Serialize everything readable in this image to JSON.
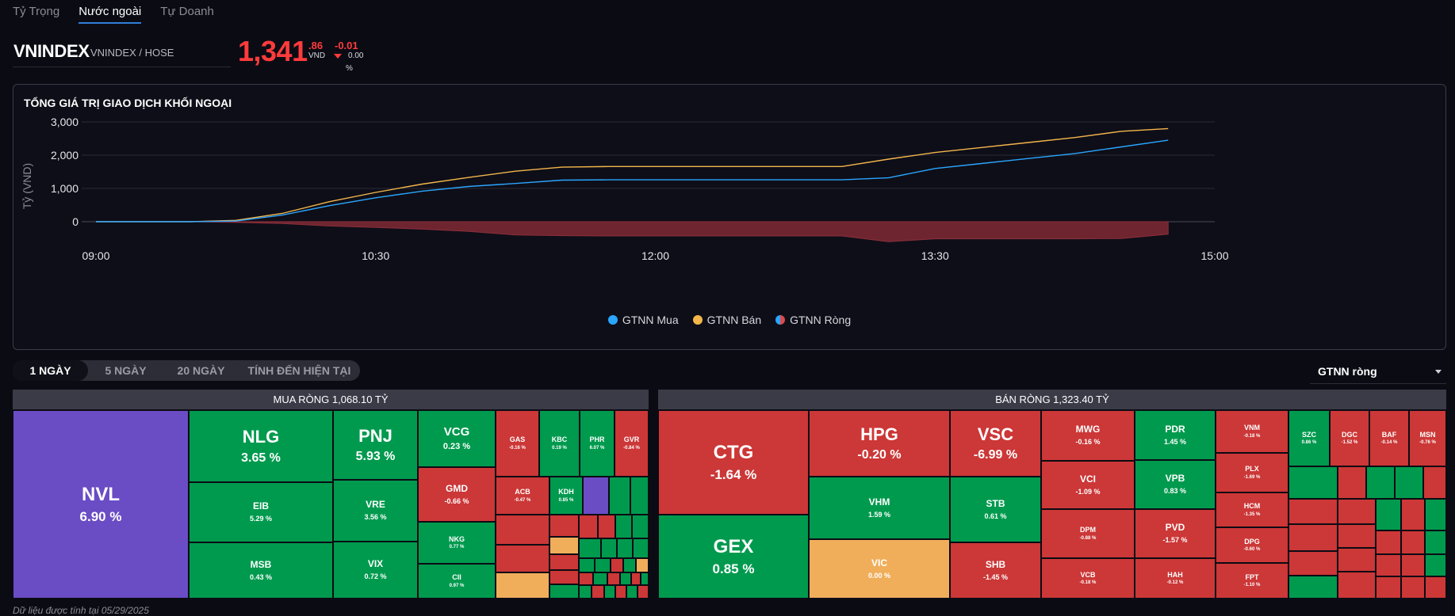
{
  "tabs": [
    {
      "label": "Tỷ Trọng"
    },
    {
      "label": "Nước ngoài"
    },
    {
      "label": "Tự Doanh"
    }
  ],
  "index": {
    "title": "VNINDEX",
    "subtitle": "VNINDEX / HOSE",
    "price_int": "1,341",
    "price_dec": ".86",
    "unit": "VND",
    "change": "-0.01",
    "change_pct": "0.00",
    "pct_sign": "%"
  },
  "chart_data": {
    "type": "line",
    "title": "TỔNG GIÁ TRỊ GIAO DỊCH KHỐI NGOẠI",
    "ylabel": "Tỷ (VND)",
    "xlabel": "",
    "ylim": [
      -500,
      3000
    ],
    "yticks": [
      "3,000",
      "2,000",
      "1,000",
      "0"
    ],
    "xticks": [
      "09:00",
      "10:30",
      "12:00",
      "13:30",
      "15:00"
    ],
    "x_hours": [
      9.0,
      9.25,
      9.5,
      9.75,
      10.0,
      10.25,
      10.5,
      10.75,
      11.0,
      11.25,
      11.5,
      11.75,
      12.0,
      12.5,
      13.0,
      13.25,
      13.5,
      13.75,
      14.0,
      14.25,
      14.5,
      14.75
    ],
    "series": [
      {
        "name": "GTNN Mua",
        "color": "#2aa6ff",
        "values": [
          0,
          0,
          0,
          20,
          200,
          480,
          720,
          920,
          1060,
          1150,
          1250,
          1260,
          1260,
          1260,
          1260,
          1320,
          1600,
          1750,
          1900,
          2050,
          2250,
          2450
        ]
      },
      {
        "name": "GTNN Bán",
        "color": "#f3b64b",
        "values": [
          0,
          0,
          0,
          40,
          250,
          600,
          880,
          1130,
          1330,
          1520,
          1640,
          1660,
          1660,
          1660,
          1660,
          1880,
          2080,
          2230,
          2380,
          2530,
          2720,
          2800
        ]
      },
      {
        "name": "GTNN Ròng",
        "color": "#d94c4c",
        "values": [
          0,
          0,
          0,
          -20,
          -50,
          -120,
          -160,
          -210,
          -270,
          -370,
          -390,
          -400,
          -400,
          -400,
          -400,
          -560,
          -480,
          -480,
          -480,
          -480,
          -470,
          -350
        ]
      }
    ],
    "legend": [
      "GTNN Mua",
      "GTNN Bán",
      "GTNN Ròng"
    ]
  },
  "periods": [
    "1 NGÀY",
    "5 NGÀY",
    "20 NGÀY",
    "TÍNH ĐẾN HIỆN TẠI"
  ],
  "select_value": "GTNN ròng",
  "buy_header": "MUA RÒNG 1,068.10 TỶ",
  "sell_header": "BÁN RÒNG 1,323.40 TỶ",
  "buy_cells": [
    {
      "s": "NVL",
      "p": "6.90 %"
    },
    {
      "s": "NLG",
      "p": "3.65 %"
    },
    {
      "s": "PNJ",
      "p": "5.93 %"
    },
    {
      "s": "VCG",
      "p": "0.23 %"
    },
    {
      "s": "GAS",
      "p": "-0.16 %"
    },
    {
      "s": "KBC",
      "p": "0.19 %"
    },
    {
      "s": "PHR",
      "p": "6.07 %"
    },
    {
      "s": "GVR",
      "p": "-0.84 %"
    },
    {
      "s": "EIB",
      "p": "5.29 %"
    },
    {
      "s": "VRE",
      "p": "3.56 %"
    },
    {
      "s": "GMD",
      "p": "-0.66 %"
    },
    {
      "s": "ACB",
      "p": "-0.47 %"
    },
    {
      "s": "KDH",
      "p": "0.85 %"
    },
    {
      "s": "NKG",
      "p": "0.77 %"
    },
    {
      "s": "MSB",
      "p": "0.43 %"
    },
    {
      "s": "VIX",
      "p": "0.72 %"
    },
    {
      "s": "CII",
      "p": "0.97 %"
    }
  ],
  "sell_cells": [
    {
      "s": "CTG",
      "p": "-1.64 %"
    },
    {
      "s": "HPG",
      "p": "-0.20 %"
    },
    {
      "s": "VSC",
      "p": "-6.99 %"
    },
    {
      "s": "MWG",
      "p": "-0.16 %"
    },
    {
      "s": "PDR",
      "p": "1.45 %"
    },
    {
      "s": "VNM",
      "p": "-0.18 %"
    },
    {
      "s": "SZC",
      "p": "0.86 %"
    },
    {
      "s": "DGC",
      "p": "-1.52 %"
    },
    {
      "s": "BAF",
      "p": "-0.14 %"
    },
    {
      "s": "MSN",
      "p": "-0.76 %"
    },
    {
      "s": "PLX",
      "p": "-1.69 %"
    },
    {
      "s": "VCI",
      "p": "-1.09 %"
    },
    {
      "s": "VPB",
      "p": "0.83 %"
    },
    {
      "s": "VHM",
      "p": "1.59 %"
    },
    {
      "s": "STB",
      "p": "0.61 %"
    },
    {
      "s": "HCM",
      "p": "-1.35 %"
    },
    {
      "s": "DPM",
      "p": "-0.88 %"
    },
    {
      "s": "PVD",
      "p": "-1.57 %"
    },
    {
      "s": "DPG",
      "p": "-0.60 %"
    },
    {
      "s": "GEX",
      "p": "0.85 %"
    },
    {
      "s": "VIC",
      "p": "0.00 %"
    },
    {
      "s": "SHB",
      "p": "-1.45 %"
    },
    {
      "s": "VCB",
      "p": "-0.18 %"
    },
    {
      "s": "HAH",
      "p": "-0.12 %"
    },
    {
      "s": "FPT",
      "p": "-1.10 %"
    }
  ],
  "footer": "Dữ liệu được tính tại 05/29/2025"
}
